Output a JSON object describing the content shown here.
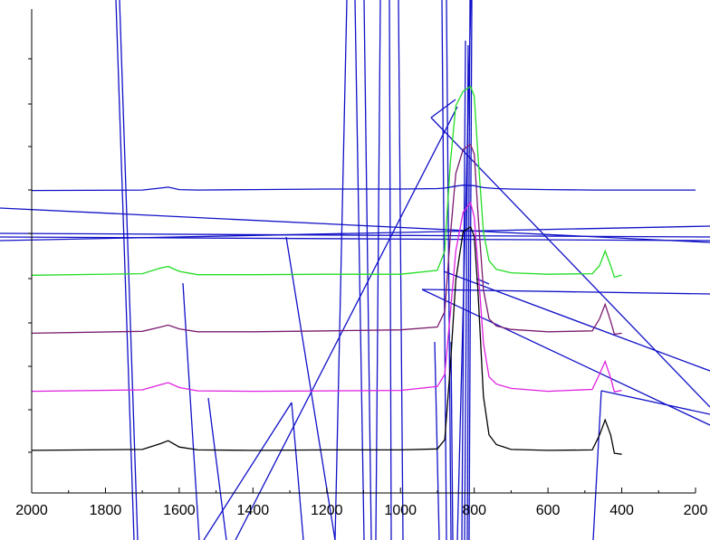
{
  "chart_data": {
    "type": "line",
    "title": "",
    "xlabel": "",
    "ylabel": "",
    "x_reversed": true,
    "xlim": [
      2000,
      200
    ],
    "ylim": [
      0,
      1
    ],
    "grid": false,
    "x_ticks": [
      2000,
      1800,
      1600,
      1400,
      1200,
      1000,
      800,
      600,
      400,
      200
    ],
    "x_tick_labels": [
      "2000",
      "1800",
      "1600",
      "1400",
      "1200",
      "1000",
      "800",
      "600",
      "400",
      "200"
    ],
    "series": [
      {
        "color": "#000000",
        "x": [
          2000,
          1700,
          1650,
          1630,
          1600,
          1550,
          1400,
          1200,
          1000,
          900,
          880,
          865,
          850,
          830,
          810,
          800,
          790,
          775,
          760,
          740,
          700,
          600,
          480,
          460,
          445,
          430,
          420,
          400
        ],
        "y": [
          0.088,
          0.09,
          0.102,
          0.108,
          0.095,
          0.089,
          0.088,
          0.089,
          0.089,
          0.091,
          0.11,
          0.26,
          0.44,
          0.54,
          0.55,
          0.53,
          0.42,
          0.2,
          0.12,
          0.1,
          0.09,
          0.088,
          0.089,
          0.12,
          0.151,
          0.12,
          0.082,
          0.08
        ]
      },
      {
        "color": "#e020e0",
        "x": [
          2000,
          1700,
          1650,
          1630,
          1600,
          1550,
          1400,
          1200,
          1000,
          900,
          880,
          865,
          850,
          830,
          810,
          800,
          790,
          775,
          760,
          740,
          700,
          600,
          480,
          460,
          445,
          430,
          420,
          400
        ],
        "y": [
          0.21,
          0.213,
          0.224,
          0.228,
          0.218,
          0.211,
          0.21,
          0.211,
          0.212,
          0.22,
          0.245,
          0.37,
          0.5,
          0.58,
          0.6,
          0.57,
          0.47,
          0.31,
          0.24,
          0.225,
          0.216,
          0.21,
          0.214,
          0.246,
          0.272,
          0.238,
          0.209,
          0.212
        ]
      },
      {
        "color": "#7a1a6e",
        "x": [
          2000,
          1700,
          1650,
          1630,
          1600,
          1550,
          1400,
          1200,
          1000,
          900,
          880,
          865,
          850,
          830,
          810,
          800,
          790,
          775,
          760,
          740,
          700,
          600,
          480,
          460,
          445,
          430,
          420,
          400
        ],
        "y": [
          0.33,
          0.334,
          0.343,
          0.347,
          0.339,
          0.333,
          0.333,
          0.335,
          0.337,
          0.343,
          0.375,
          0.53,
          0.66,
          0.71,
          0.72,
          0.7,
          0.58,
          0.42,
          0.36,
          0.345,
          0.338,
          0.333,
          0.335,
          0.36,
          0.39,
          0.355,
          0.328,
          0.33
        ]
      },
      {
        "color": "#22dd22",
        "x": [
          2000,
          1700,
          1650,
          1630,
          1600,
          1550,
          1400,
          1200,
          1000,
          900,
          880,
          865,
          850,
          830,
          810,
          800,
          790,
          775,
          760,
          740,
          700,
          600,
          480,
          460,
          445,
          430,
          420,
          400
        ],
        "y": [
          0.45,
          0.453,
          0.465,
          0.468,
          0.458,
          0.451,
          0.451,
          0.452,
          0.452,
          0.46,
          0.5,
          0.68,
          0.8,
          0.83,
          0.84,
          0.82,
          0.7,
          0.54,
          0.48,
          0.462,
          0.455,
          0.452,
          0.453,
          0.47,
          0.5,
          0.47,
          0.446,
          0.45
        ]
      },
      {
        "color": "#1010c8",
        "x": [
          2000,
          1700,
          1650,
          1630,
          1600,
          1550,
          1400,
          1200,
          1000,
          900,
          880,
          865,
          850,
          830,
          800,
          790,
          775,
          760,
          740,
          700,
          600,
          480,
          440,
          400,
          200
        ],
        "y": [
          0.625,
          0.626,
          0.63,
          0.632,
          0.627,
          0.626,
          0.627,
          0.628,
          0.628,
          0.629,
          0.63,
          0.632,
          0.634,
          0.636,
          0.635,
          0.633,
          0.631,
          0.63,
          0.629,
          0.628,
          0.627,
          0.626,
          0.626,
          0.626,
          0.626
        ]
      }
    ]
  }
}
